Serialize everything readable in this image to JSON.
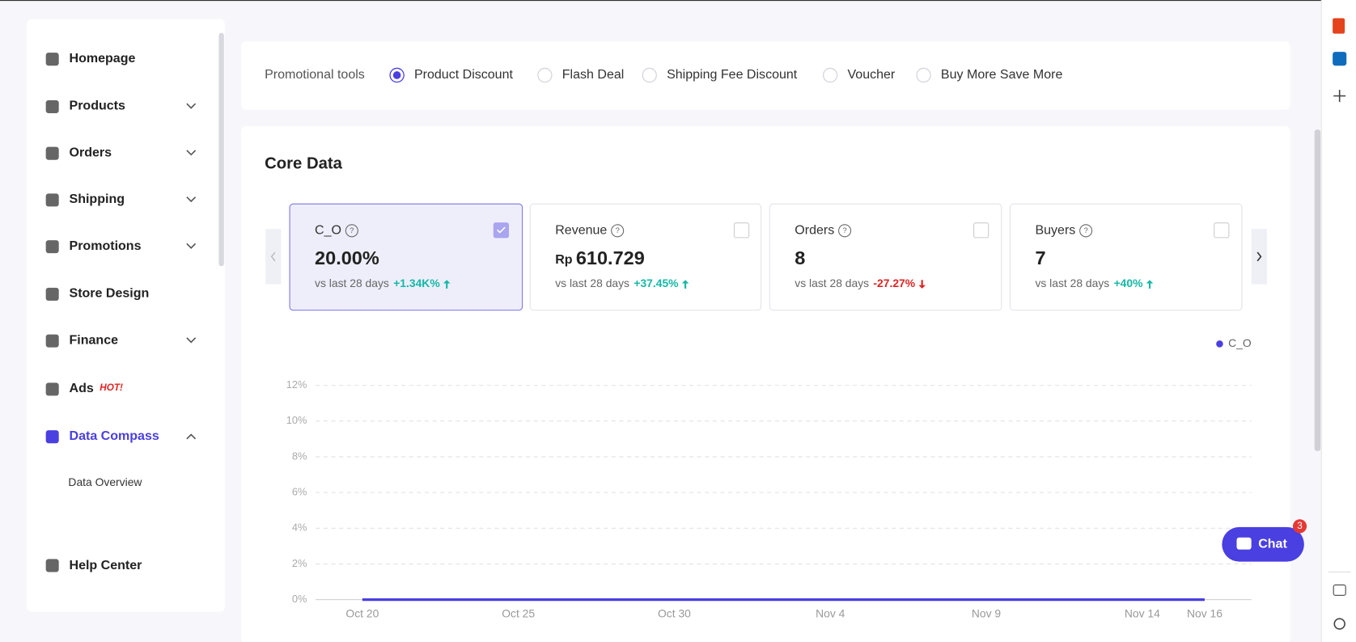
{
  "sidebar": {
    "items": [
      {
        "label": "Homepage"
      },
      {
        "label": "Products"
      },
      {
        "label": "Orders"
      },
      {
        "label": "Shipping"
      },
      {
        "label": "Promotions"
      },
      {
        "label": "Store Design"
      },
      {
        "label": "Finance"
      },
      {
        "label": "Ads",
        "badge": "HOT!"
      },
      {
        "label": "Data Compass"
      }
    ],
    "sub_item": "Data Overview",
    "footer_item": "Help Center"
  },
  "promo_tools": {
    "label": "Promotional tools",
    "options": [
      "Product Discount",
      "Flash Deal",
      "Shipping Fee Discount",
      "Voucher",
      "Buy More Save More"
    ],
    "selected": 0
  },
  "core_data": {
    "title": "Core Data",
    "selected": 0,
    "cards": [
      {
        "name": "C_O",
        "value": "20.00%",
        "comparison": "vs last 28 days",
        "change": "+1.34K%",
        "direction": "up"
      },
      {
        "name": "Revenue",
        "currency": "Rp",
        "value": "610.729",
        "comparison": "vs last 28 days",
        "change": "+37.45%",
        "direction": "up"
      },
      {
        "name": "Orders",
        "value": "8",
        "comparison": "vs last 28 days",
        "change": "-27.27%",
        "direction": "down"
      },
      {
        "name": "Buyers",
        "value": "7",
        "comparison": "vs last 28 days",
        "change": "+40%",
        "direction": "up"
      }
    ]
  },
  "chart_data": {
    "type": "line",
    "categories": [
      "Oct 20",
      null,
      null,
      null,
      null,
      "Oct 25",
      null,
      null,
      null,
      null,
      "Oct 30",
      null,
      null,
      null,
      null,
      "Nov 4",
      null,
      null,
      null,
      null,
      "Nov 9",
      null,
      null,
      null,
      null,
      "Nov 14",
      null,
      "Nov 16"
    ],
    "series": [
      {
        "name": "C_O",
        "color": "#4a3fe0",
        "values": [
          0,
          0,
          0,
          0,
          0,
          0,
          0,
          0,
          0,
          0,
          0,
          0,
          0,
          0,
          0,
          0,
          0,
          0,
          0,
          0,
          0,
          0,
          0,
          0,
          0,
          0,
          0,
          0
        ]
      }
    ],
    "ylim": [
      0,
      12
    ],
    "yticks": [
      {
        "value": 0,
        "label": "0%"
      },
      {
        "value": 2,
        "label": "2%"
      },
      {
        "value": 4,
        "label": "4%"
      },
      {
        "value": 6,
        "label": "6%"
      },
      {
        "value": 8,
        "label": "8%"
      },
      {
        "value": 10,
        "label": "10%"
      },
      {
        "value": 12,
        "label": "12%"
      }
    ],
    "grid": true,
    "legend": "top-right"
  },
  "chat": {
    "label": "Chat",
    "badge": "3"
  }
}
